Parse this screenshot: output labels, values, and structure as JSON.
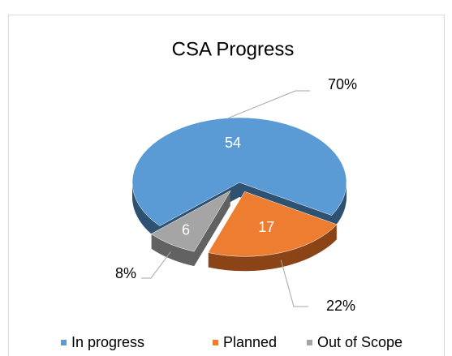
{
  "chart_data": {
    "type": "pie3d",
    "title": "CSA Progress",
    "categories": [
      "In progress",
      "Planned",
      "Out of Scope"
    ],
    "values": [
      54,
      17,
      6
    ],
    "percentages": [
      70,
      22,
      8
    ],
    "percentage_labels": [
      "70%",
      "22%",
      "8%"
    ],
    "colors": [
      "#5b9bd5",
      "#ed7d31",
      "#a5a5a5"
    ],
    "side_colors": [
      "#2f5272",
      "#8a4417",
      "#626262"
    ],
    "legend": "bottom"
  }
}
